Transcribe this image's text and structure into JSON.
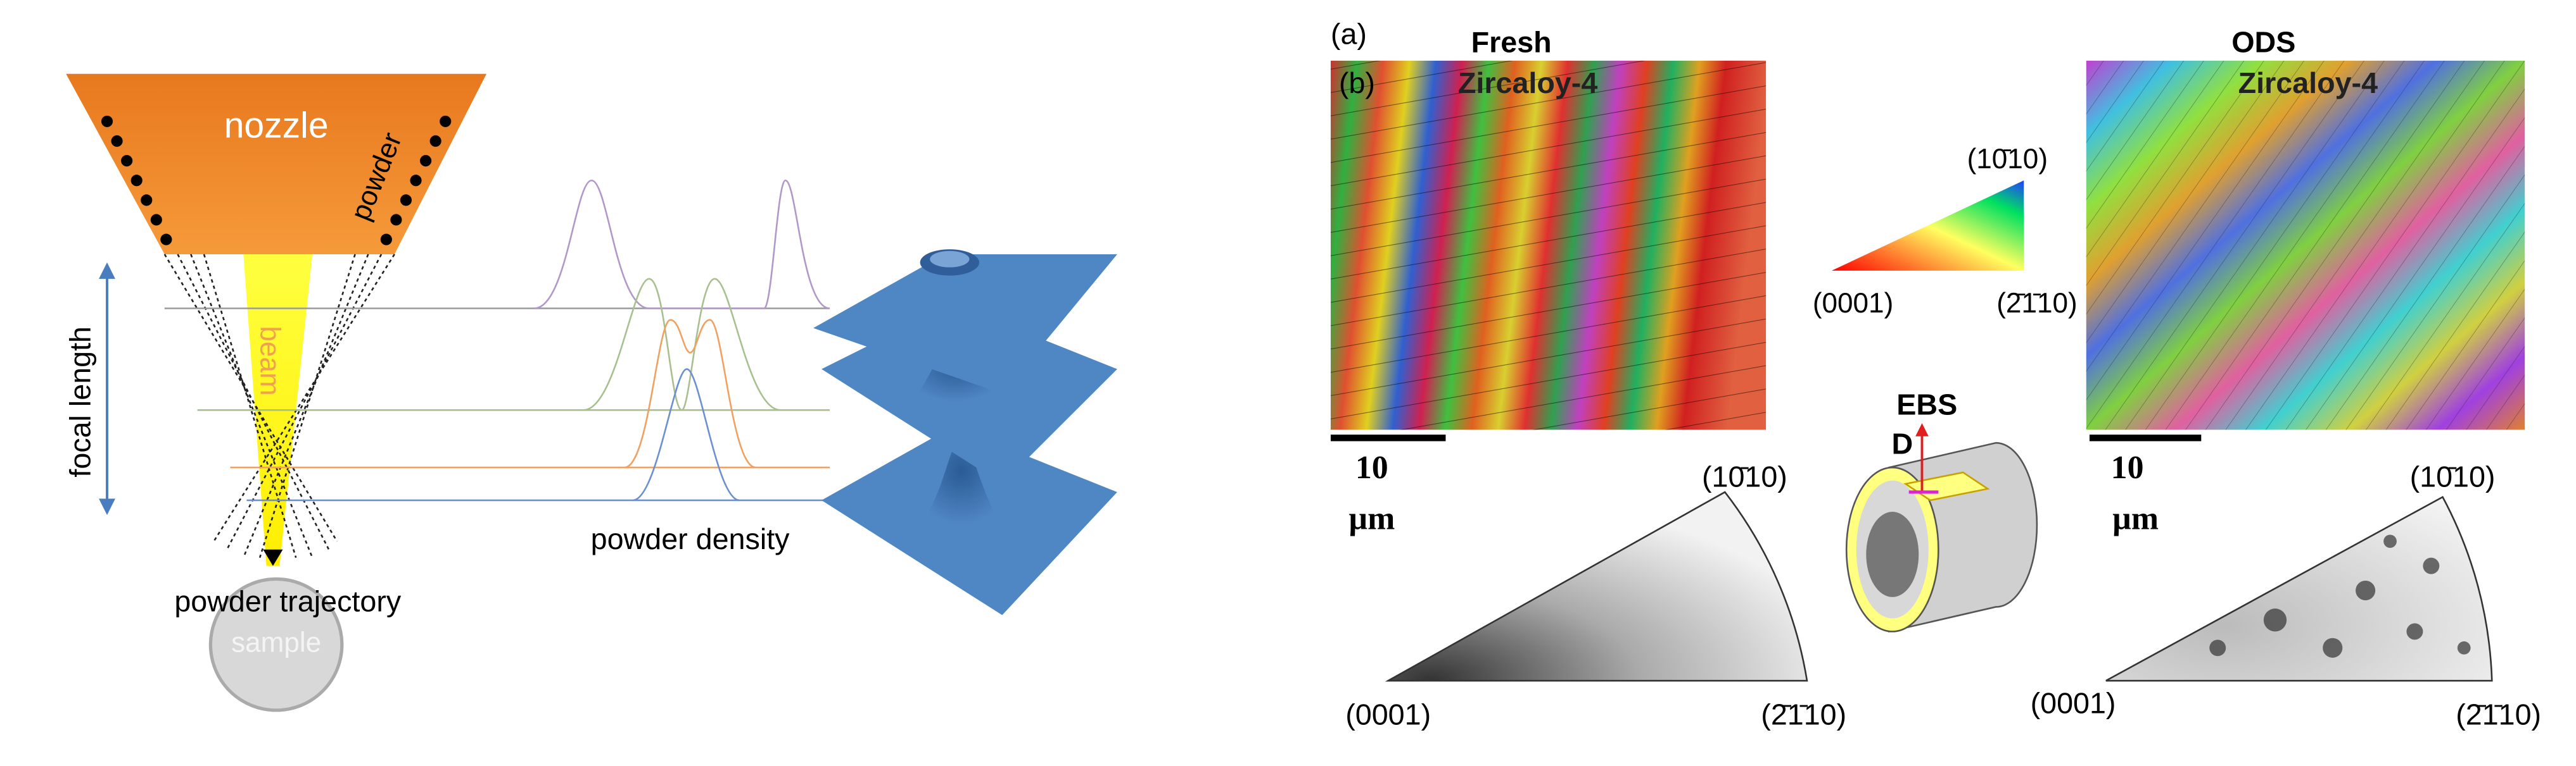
{
  "left_panel": {
    "nozzle": "nozzle",
    "powder": "powder",
    "beam": "beam",
    "focal_length": "focal length",
    "powder_trajectory": "powder trajectory",
    "sample": "sample",
    "powder_density": "powder density"
  },
  "right_panel": {
    "panel_label_a": "(a)",
    "panel_label_b": "(b)",
    "fresh": {
      "title": [
        "Fresh",
        "Zircaloy-4"
      ],
      "scale_bar": [
        "10",
        "µm"
      ],
      "pole_labels": [
        "(10̄10)",
        "(0001)",
        "(2̄1̄10)"
      ]
    },
    "ods": {
      "title": [
        "ODS",
        "Zircaloy-4"
      ],
      "scale_bar": [
        "10",
        "µm"
      ],
      "pole_labels": [
        "(10̄10)",
        "(0001)",
        "(2̄1̄10)"
      ]
    },
    "color_key_labels": [
      "(10̄10)",
      "(0001)",
      "(2̄1̄10)"
    ],
    "ebsd_label": [
      "EBS",
      "D"
    ]
  }
}
